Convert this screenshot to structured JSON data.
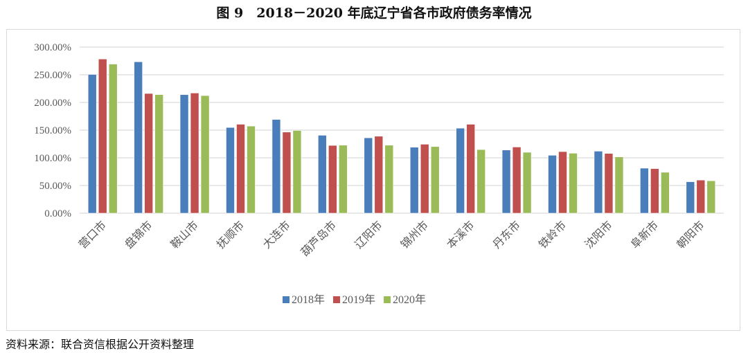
{
  "title": "图 9　2018－2020 年底辽宁省各市政府债务率情况",
  "source": "资料来源：联合资信根据公开资料整理",
  "chart_data": {
    "type": "bar",
    "title": "图 9　2018－2020 年底辽宁省各市政府债务率情况",
    "xlabel": "",
    "ylabel": "",
    "ylim": [
      0,
      300
    ],
    "yticks": [
      0,
      50,
      100,
      150,
      200,
      250,
      300
    ],
    "ytick_labels": [
      "0.00%",
      "50.00%",
      "100.00%",
      "150.00%",
      "200.00%",
      "250.00%",
      "300.00%"
    ],
    "grid": true,
    "legend_position": "bottom",
    "categories": [
      "营口市",
      "盘锦市",
      "鞍山市",
      "抚顺市",
      "大连市",
      "葫芦岛市",
      "辽阳市",
      "锦州市",
      "本溪市",
      "丹东市",
      "铁岭市",
      "沈阳市",
      "阜新市",
      "朝阳市"
    ],
    "series": [
      {
        "name": "2018年",
        "color": "#4a7ebb",
        "values": [
          250.6,
          273.4,
          214.1,
          154.8,
          169.3,
          140.7,
          136.1,
          119.1,
          153.5,
          114.1,
          104.6,
          112.0,
          81.3,
          56.8
        ]
      },
      {
        "name": "2019年",
        "color": "#c0504d",
        "values": [
          278.4,
          216.2,
          217.0,
          160.6,
          146.5,
          122.4,
          139.0,
          124.5,
          160.6,
          119.5,
          111.2,
          107.9,
          80.5,
          59.8
        ]
      },
      {
        "name": "2020年",
        "color": "#9bbb59",
        "values": [
          269.3,
          214.1,
          212.4,
          157.3,
          149.4,
          122.8,
          122.8,
          120.3,
          114.9,
          110.0,
          108.3,
          101.7,
          73.9,
          58.5
        ]
      }
    ]
  }
}
